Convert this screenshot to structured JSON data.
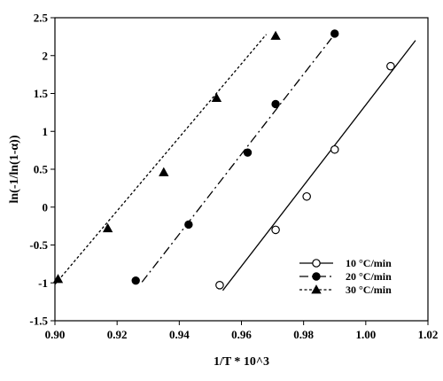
{
  "chart_data": {
    "type": "scatter",
    "xlabel": "1/T * 10^3",
    "ylabel": "ln(-1/ln(1-α))",
    "xlim": [
      0.9,
      1.02
    ],
    "ylim": [
      -1.5,
      2.5
    ],
    "x_ticks": [
      "0.90",
      "0.92",
      "0.94",
      "0.96",
      "0.98",
      "1.00",
      "1.02"
    ],
    "y_ticks": [
      "-1.5",
      "-1",
      "-0.5",
      "0",
      "0.5",
      "1",
      "1.5",
      "2",
      "2.5"
    ],
    "grid": false,
    "legend_position": "bottom-right",
    "series": [
      {
        "name": "10 °C/min",
        "marker": "open-circle",
        "line_style": "solid",
        "points": [
          {
            "x": 0.953,
            "y": -1.03
          },
          {
            "x": 0.971,
            "y": -0.3
          },
          {
            "x": 0.981,
            "y": 0.14
          },
          {
            "x": 0.99,
            "y": 0.76
          },
          {
            "x": 1.008,
            "y": 1.86
          }
        ],
        "fit": [
          {
            "x": 0.954,
            "y": -1.1
          },
          {
            "x": 1.016,
            "y": 2.2
          }
        ]
      },
      {
        "name": "20 °C/min",
        "marker": "filled-circle",
        "line_style": "dash-dot",
        "points": [
          {
            "x": 0.926,
            "y": -0.97
          },
          {
            "x": 0.943,
            "y": -0.23
          },
          {
            "x": 0.962,
            "y": 0.72
          },
          {
            "x": 0.971,
            "y": 1.36
          },
          {
            "x": 0.99,
            "y": 2.29
          }
        ],
        "fit": [
          {
            "x": 0.928,
            "y": -0.99
          },
          {
            "x": 0.989,
            "y": 2.23
          }
        ]
      },
      {
        "name": "30 °C/min",
        "marker": "filled-triangle",
        "line_style": "dotted",
        "points": [
          {
            "x": 0.901,
            "y": -0.95
          },
          {
            "x": 0.917,
            "y": -0.28
          },
          {
            "x": 0.935,
            "y": 0.46
          },
          {
            "x": 0.952,
            "y": 1.44
          },
          {
            "x": 0.971,
            "y": 2.26
          }
        ],
        "fit": [
          {
            "x": 0.9,
            "y": -1.02
          },
          {
            "x": 0.968,
            "y": 2.28
          }
        ]
      }
    ]
  }
}
